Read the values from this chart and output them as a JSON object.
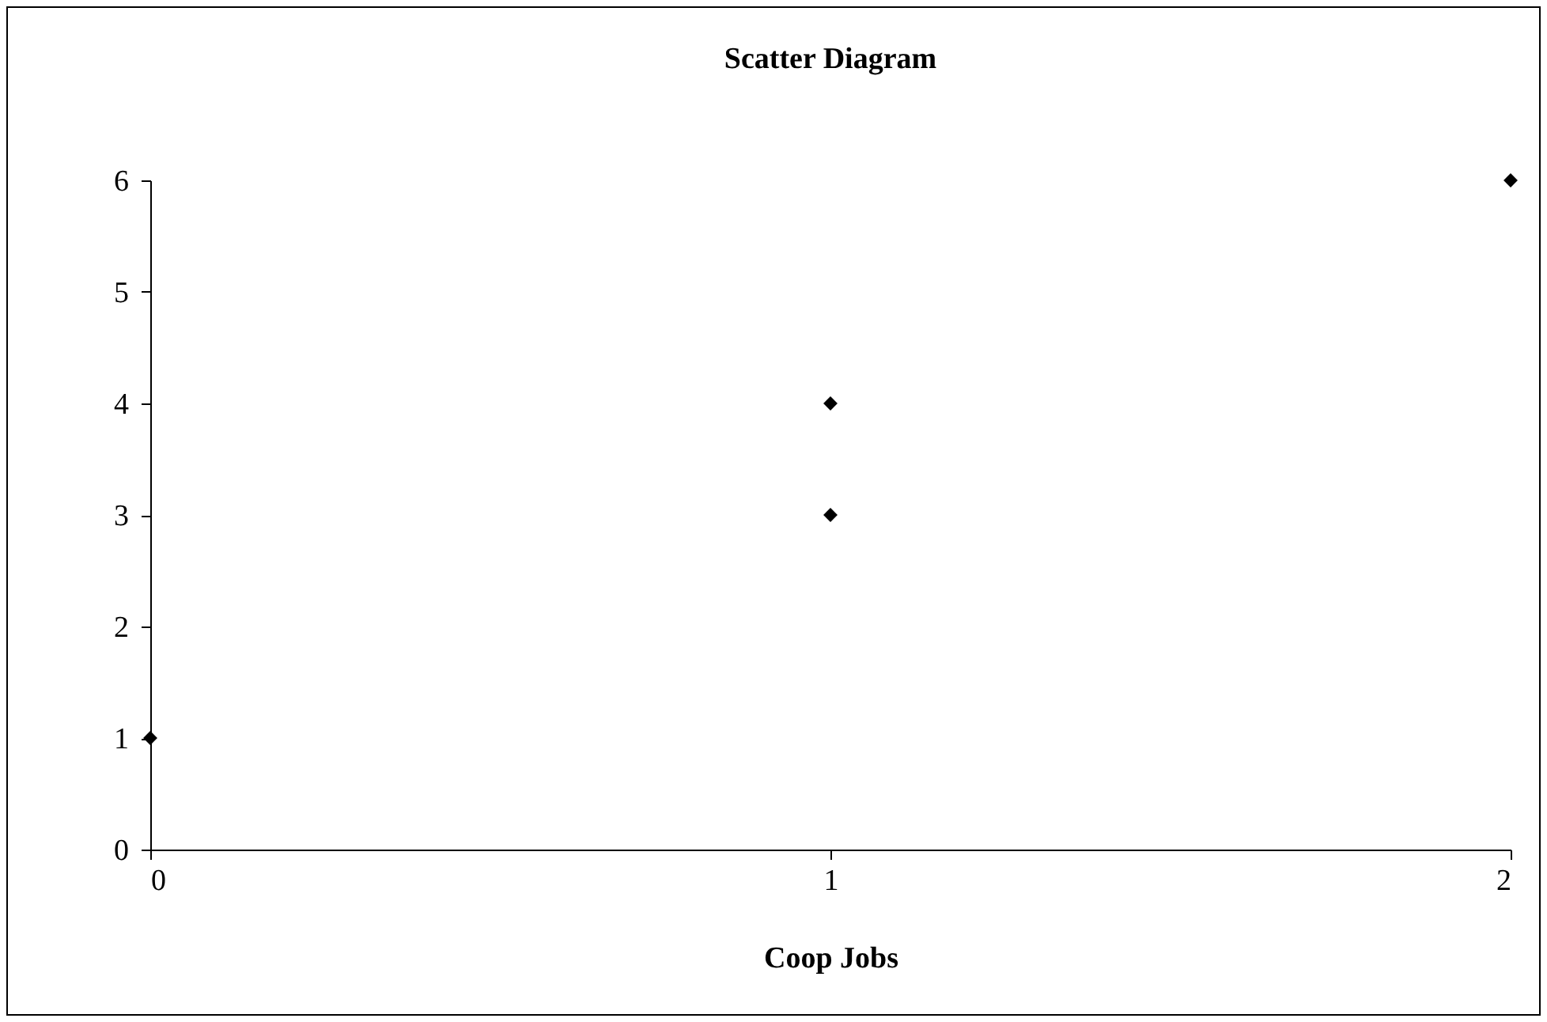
{
  "chart_data": {
    "type": "scatter",
    "title": "Scatter Diagram",
    "xlabel": "Coop Jobs",
    "x": [
      0,
      1,
      1,
      2
    ],
    "values": [
      1,
      3,
      4,
      6
    ],
    "color": "#000000",
    "marker": "diamond",
    "xlim": [
      0,
      2
    ],
    "xticks": [
      0,
      1,
      2
    ],
    "ylim": [
      0,
      6
    ],
    "yticks": [
      0,
      1,
      2,
      3,
      4,
      5,
      6
    ],
    "grid": false,
    "legend": false
  }
}
